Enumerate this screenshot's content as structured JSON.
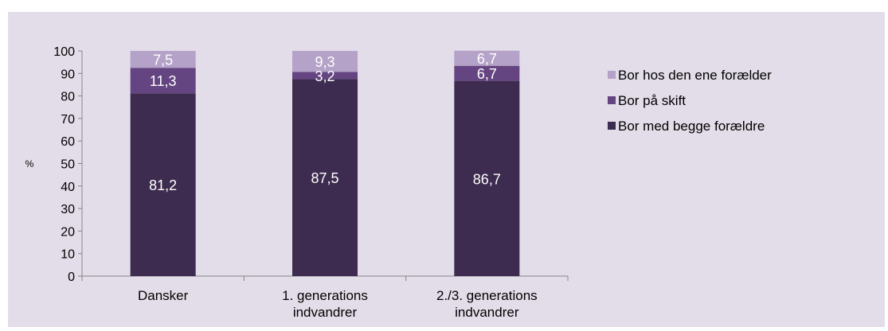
{
  "chart_data": {
    "type": "bar",
    "stacked": true,
    "ylabel": "%",
    "ylim": [
      0,
      100
    ],
    "yticks": [
      "0",
      "10",
      "20",
      "30",
      "40",
      "50",
      "60",
      "70",
      "80",
      "90",
      "100"
    ],
    "categories": [
      [
        "Dansker"
      ],
      [
        "1. generations",
        "indvandrer"
      ],
      [
        "2./3. generations",
        "indvandrer"
      ]
    ],
    "series": [
      {
        "name": "Bor med begge forældre",
        "values": [
          81.2,
          87.5,
          86.7
        ],
        "labels": [
          "81,2",
          "87,5",
          "86,7"
        ],
        "color": "#3d2c4f"
      },
      {
        "name": "Bor på skift",
        "values": [
          11.3,
          3.2,
          6.7
        ],
        "labels": [
          "11,3",
          "3,2",
          "6,7"
        ],
        "color": "#654581"
      },
      {
        "name": "Bor hos den ene forælder",
        "values": [
          7.5,
          9.3,
          6.7
        ],
        "labels": [
          "7,5",
          "9,3",
          "6,7"
        ],
        "color": "#b5a2c8"
      }
    ],
    "legend": {
      "position": "right",
      "order": [
        "Bor hos den ene forælder",
        "Bor på skift",
        "Bor med begge forældre"
      ]
    },
    "grid": false
  }
}
